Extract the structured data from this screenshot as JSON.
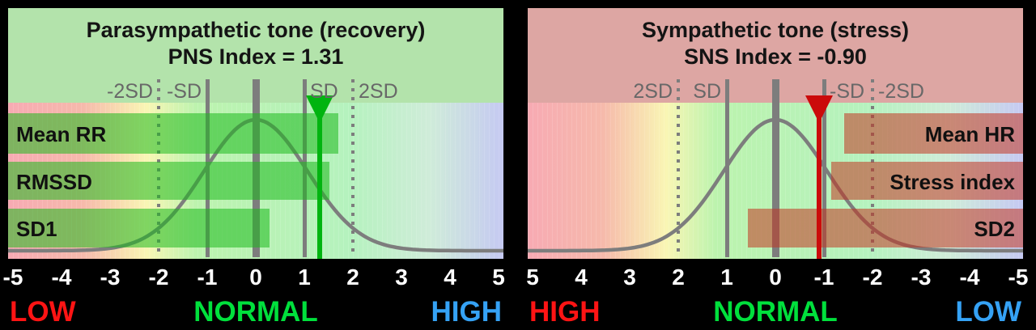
{
  "plot_gradient": [
    "#f7aab3 0%",
    "#f6b9ab 15%",
    "#f9f6b4 28%",
    "#bcf3ae 38%",
    "#b5f2be 69%",
    "#cfecd9 85%",
    "#c5c9f2 100%"
  ],
  "reference_lines": {
    "dotted": [
      -2,
      2
    ],
    "solid": [
      -1,
      1
    ],
    "thick": [
      0
    ]
  },
  "distribution": {
    "mean": 0,
    "sd": 1
  },
  "line_color": "#7d7d7d",
  "panels": [
    {
      "id": "pns",
      "title": "Parasympathetic tone (recovery)",
      "subtitle": "PNS Index = 1.31",
      "index_value": 1.31,
      "axis_reversed": false,
      "box_color": "#b3e3ab",
      "bar_color": "rgba(30,185,30,0.55)",
      "marker_color": "#00b410",
      "bars": [
        {
          "label": "Mean RR",
          "value": 1.7
        },
        {
          "label": "RMSSD",
          "value": 1.52
        },
        {
          "label": "SD1",
          "value": 0.28
        }
      ],
      "sd_labels": [
        {
          "text": "-2SD",
          "value": -2,
          "anchor": "before"
        },
        {
          "text": "-SD",
          "value": -1,
          "anchor": "before"
        },
        {
          "text": "SD",
          "value": 1,
          "anchor": "after"
        },
        {
          "text": "2SD",
          "value": 2,
          "anchor": "after"
        }
      ],
      "ticks": [
        -5,
        -4,
        -3,
        -2,
        -1,
        0,
        1,
        2,
        3,
        4,
        5
      ],
      "zones": [
        {
          "text": "LOW",
          "color": "#ff1414",
          "align": "left"
        },
        {
          "text": "NORMAL",
          "color": "#00e03c",
          "align": "center"
        },
        {
          "text": "HIGH",
          "color": "#35a2f5",
          "align": "right"
        }
      ]
    },
    {
      "id": "sns",
      "title": "Sympathetic tone (stress)",
      "subtitle": "SNS Index = -0.90",
      "index_value": -0.9,
      "axis_reversed": true,
      "box_color": "#dda6a3",
      "bar_color": "rgba(195,55,35,0.55)",
      "marker_color": "#cb0b0b",
      "bars": [
        {
          "label": "Mean HR",
          "value": -1.42
        },
        {
          "label": "Stress index",
          "value": -1.15
        },
        {
          "label": "SD2",
          "value": 0.57
        }
      ],
      "sd_labels": [
        {
          "text": "2SD",
          "value": 2,
          "anchor": "before"
        },
        {
          "text": "SD",
          "value": 1,
          "anchor": "before"
        },
        {
          "text": "-SD",
          "value": -1,
          "anchor": "after"
        },
        {
          "text": "-2SD",
          "value": -2,
          "anchor": "after"
        }
      ],
      "ticks": [
        5,
        4,
        3,
        2,
        1,
        0,
        -1,
        -2,
        -3,
        -4,
        -5
      ],
      "zones": [
        {
          "text": "HIGH",
          "color": "#ff1414",
          "align": "left"
        },
        {
          "text": "NORMAL",
          "color": "#00e03c",
          "align": "center"
        },
        {
          "text": "LOW",
          "color": "#35a2f5",
          "align": "right"
        }
      ]
    }
  ],
  "chart_data": [
    {
      "type": "bar",
      "orientation": "horizontal",
      "title": "Parasympathetic tone (recovery)",
      "subtitle": "PNS Index = 1.31",
      "index_name": "PNS Index",
      "index_value": 1.31,
      "categories": [
        "Mean RR",
        "RMSSD",
        "SD1"
      ],
      "values": [
        1.7,
        1.52,
        0.28
      ],
      "xlabel": "",
      "ylabel": "",
      "xlim": [
        -5,
        5
      ],
      "x_ticks": [
        -5,
        -4,
        -3,
        -2,
        -1,
        0,
        1,
        2,
        3,
        4,
        5
      ],
      "axis_reversed": false,
      "sd_guide_labels": [
        "-2SD",
        "-SD",
        "SD",
        "2SD"
      ],
      "reference_lines": {
        "solid": [
          -1,
          0,
          1
        ],
        "dotted": [
          -2,
          2
        ]
      },
      "reference_curve": {
        "shape": "normal-distribution",
        "mean": 0,
        "sd": 1
      },
      "zone_labels": {
        "left": "LOW",
        "center": "NORMAL",
        "right": "HIGH"
      },
      "legend_position": "none",
      "grid": false
    },
    {
      "type": "bar",
      "orientation": "horizontal",
      "title": "Sympathetic tone (stress)",
      "subtitle": "SNS Index = -0.90",
      "index_name": "SNS Index",
      "index_value": -0.9,
      "categories": [
        "Mean HR",
        "Stress index",
        "SD2"
      ],
      "values": [
        -1.42,
        -1.15,
        0.57
      ],
      "xlabel": "",
      "ylabel": "",
      "xlim": [
        5,
        -5
      ],
      "x_ticks": [
        5,
        4,
        3,
        2,
        1,
        0,
        -1,
        -2,
        -3,
        -4,
        -5
      ],
      "axis_reversed": true,
      "sd_guide_labels": [
        "2SD",
        "SD",
        "-SD",
        "-2SD"
      ],
      "reference_lines": {
        "solid": [
          -1,
          0,
          1
        ],
        "dotted": [
          -2,
          2
        ]
      },
      "reference_curve": {
        "shape": "normal-distribution",
        "mean": 0,
        "sd": 1
      },
      "zone_labels": {
        "left": "HIGH",
        "center": "NORMAL",
        "right": "LOW"
      },
      "legend_position": "none",
      "grid": false
    }
  ]
}
